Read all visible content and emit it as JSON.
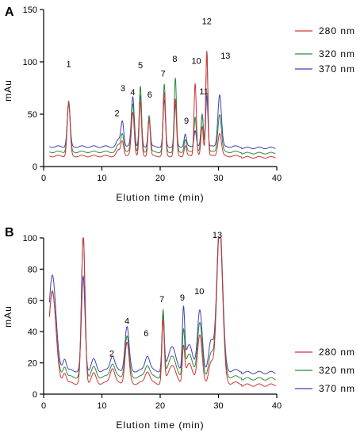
{
  "chart_data": [
    {
      "panel": "A",
      "type": "line",
      "xlabel": "Elution time (min)",
      "ylabel": "mAu",
      "xlim": [
        0,
        40
      ],
      "ylim": [
        0,
        150
      ],
      "xticks": [
        "0",
        "10",
        "20",
        "30",
        "40"
      ],
      "yticks": [
        "0",
        "50",
        "100",
        "150"
      ],
      "legend_position": "right",
      "series": [
        {
          "name": "280 nm",
          "color": "#d0343c",
          "baseline": 10,
          "peaks": [
            [
              4.3,
              50,
              0.25
            ],
            [
              12.8,
              5,
              0.3
            ],
            [
              13.5,
              15,
              0.25
            ],
            [
              15.3,
              42,
              0.25
            ],
            [
              16.6,
              52,
              0.2
            ],
            [
              18.1,
              35,
              0.2
            ],
            [
              20.7,
              60,
              0.2
            ],
            [
              22.6,
              54,
              0.2
            ],
            [
              24.3,
              10,
              0.2
            ],
            [
              26.0,
              70,
              0.2
            ],
            [
              27.2,
              28,
              0.2
            ],
            [
              28.0,
              100,
              0.18
            ],
            [
              30.2,
              22,
              0.3
            ]
          ]
        },
        {
          "name": "320 nm",
          "color": "#2e8b3a",
          "baseline": 14,
          "peaks": [
            [
              4.3,
              48,
              0.25
            ],
            [
              12.8,
              6,
              0.3
            ],
            [
              13.5,
              18,
              0.25
            ],
            [
              15.3,
              46,
              0.25
            ],
            [
              16.6,
              62,
              0.2
            ],
            [
              18.1,
              35,
              0.2
            ],
            [
              20.7,
              64,
              0.2
            ],
            [
              22.6,
              70,
              0.2
            ],
            [
              24.3,
              12,
              0.2
            ],
            [
              26.0,
              34,
              0.2
            ],
            [
              27.2,
              36,
              0.2
            ],
            [
              28.0,
              97,
              0.18
            ],
            [
              30.2,
              36,
              0.3
            ]
          ]
        },
        {
          "name": "370 nm",
          "color": "#4040b0",
          "baseline": 19,
          "peaks": [
            [
              4.3,
              41,
              0.25
            ],
            [
              12.8,
              6,
              0.3
            ],
            [
              13.5,
              25,
              0.25
            ],
            [
              15.3,
              48,
              0.25
            ],
            [
              16.6,
              48,
              0.2
            ],
            [
              18.1,
              28,
              0.2
            ],
            [
              20.7,
              44,
              0.2
            ],
            [
              22.6,
              40,
              0.2
            ],
            [
              24.3,
              12,
              0.2
            ],
            [
              26.0,
              16,
              0.2
            ],
            [
              27.2,
              30,
              0.2
            ],
            [
              28.0,
              50,
              0.18
            ],
            [
              30.2,
              50,
              0.3
            ]
          ]
        }
      ],
      "peak_labels": [
        {
          "text": "1",
          "x": 4.3,
          "y": 95
        },
        {
          "text": "2",
          "x": 12.6,
          "y": 48
        },
        {
          "text": "3",
          "x": 13.6,
          "y": 72
        },
        {
          "text": "4",
          "x": 15.3,
          "y": 68
        },
        {
          "text": "5",
          "x": 16.6,
          "y": 94
        },
        {
          "text": "6",
          "x": 18.2,
          "y": 66
        },
        {
          "text": "7",
          "x": 20.5,
          "y": 86
        },
        {
          "text": "8",
          "x": 22.5,
          "y": 100
        },
        {
          "text": "9",
          "x": 24.5,
          "y": 41
        },
        {
          "text": "10",
          "x": 26.2,
          "y": 98
        },
        {
          "text": "11",
          "x": 27.5,
          "y": 69
        },
        {
          "text": "12",
          "x": 28.0,
          "y": 136
        },
        {
          "text": "13",
          "x": 31.2,
          "y": 103
        }
      ]
    },
    {
      "panel": "B",
      "type": "line",
      "xlabel": "Elution time (min)",
      "ylabel": "mAu",
      "xlim": [
        0,
        40
      ],
      "ylim": [
        0,
        100
      ],
      "xticks": [
        "0",
        "10",
        "20",
        "30",
        "40"
      ],
      "yticks": [
        "0",
        "20",
        "40",
        "60",
        "80",
        "100"
      ],
      "legend_position": "right",
      "series": [
        {
          "name": "280 nm",
          "color": "#d0343c",
          "baseline": 7,
          "peaks": [
            [
              1.5,
              60,
              0.6
            ],
            [
              3.6,
              7,
              0.3
            ],
            [
              6.8,
              95,
              0.3
            ],
            [
              8.6,
              6,
              0.4
            ],
            [
              11.8,
              10,
              0.4
            ],
            [
              14.3,
              26,
              0.35
            ],
            [
              17.8,
              8,
              0.4
            ],
            [
              20.5,
              40,
              0.2
            ],
            [
              22.0,
              12,
              0.6
            ],
            [
              24.0,
              22,
              0.2
            ],
            [
              25.0,
              12,
              0.6
            ],
            [
              26.8,
              30,
              0.4
            ],
            [
              28.7,
              12,
              0.4
            ],
            [
              30.2,
              100,
              0.5
            ]
          ]
        },
        {
          "name": "320 nm",
          "color": "#2e8b3a",
          "baseline": 11,
          "peaks": [
            [
              1.5,
              55,
              0.6
            ],
            [
              3.6,
              7,
              0.3
            ],
            [
              6.8,
              90,
              0.3
            ],
            [
              8.6,
              6,
              0.4
            ],
            [
              11.8,
              9,
              0.4
            ],
            [
              14.3,
              26,
              0.35
            ],
            [
              17.8,
              8,
              0.4
            ],
            [
              20.5,
              42,
              0.2
            ],
            [
              22.0,
              14,
              0.6
            ],
            [
              24.0,
              28,
              0.2
            ],
            [
              25.0,
              14,
              0.6
            ],
            [
              26.8,
              34,
              0.4
            ],
            [
              28.7,
              14,
              0.4
            ],
            [
              30.2,
              98,
              0.5
            ]
          ]
        },
        {
          "name": "370 nm",
          "color": "#4040b0",
          "baseline": 15,
          "peaks": [
            [
              1.5,
              62,
              0.6
            ],
            [
              3.6,
              8,
              0.3
            ],
            [
              6.8,
              60,
              0.3
            ],
            [
              8.6,
              7,
              0.4
            ],
            [
              11.8,
              10,
              0.4
            ],
            [
              14.3,
              28,
              0.35
            ],
            [
              17.8,
              10,
              0.4
            ],
            [
              20.5,
              35,
              0.2
            ],
            [
              22.0,
              16,
              0.6
            ],
            [
              24.0,
              38,
              0.2
            ],
            [
              25.0,
              16,
              0.6
            ],
            [
              26.8,
              38,
              0.4
            ],
            [
              28.7,
              18,
              0.4
            ],
            [
              30.2,
              96,
              0.5
            ]
          ]
        }
      ],
      "peak_labels": [
        {
          "text": "2",
          "x": 11.7,
          "y": 24
        },
        {
          "text": "4",
          "x": 14.3,
          "y": 45
        },
        {
          "text": "6",
          "x": 17.6,
          "y": 37
        },
        {
          "text": "7",
          "x": 20.3,
          "y": 59
        },
        {
          "text": "9",
          "x": 23.8,
          "y": 60
        },
        {
          "text": "10",
          "x": 26.7,
          "y": 64
        },
        {
          "text": "13",
          "x": 29.8,
          "y": 108
        }
      ]
    }
  ]
}
